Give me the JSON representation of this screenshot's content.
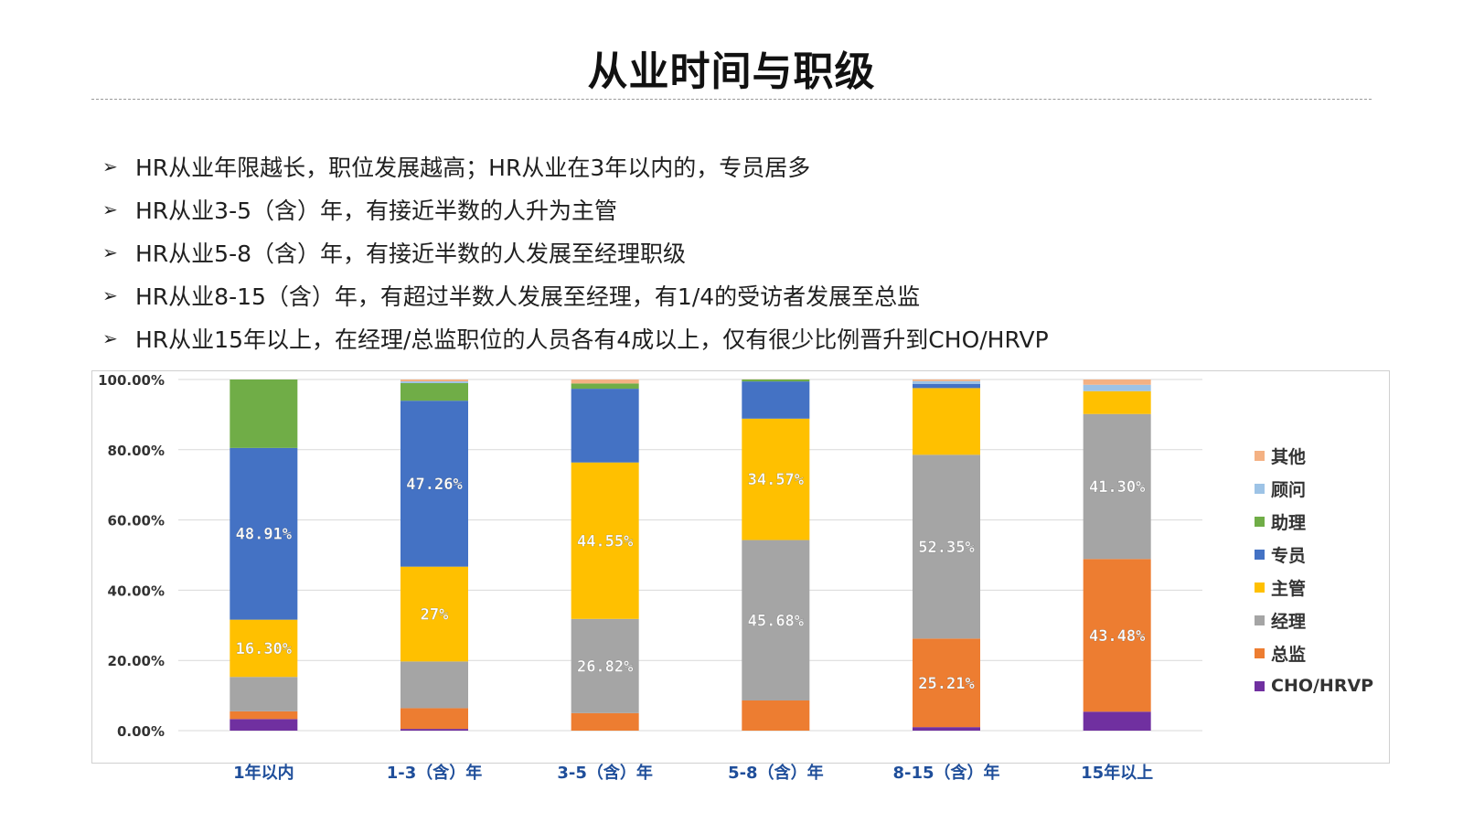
{
  "page": {
    "title": "从业时间与职级",
    "bullet_marker": "➢",
    "bullets": [
      "HR从业年限越长，职位发展越高；HR从业在3年以内的，专员居多",
      "HR从业3-5（含）年，有接近半数的人升为主管",
      "HR从业5-8（含）年，有接近半数的人发展至经理职级",
      "HR从业8-15（含）年，有超过半数人发展至经理，有1/4的受访者发展至总监",
      "HR从业15年以上，在经理/总监职位的人员各有4成以上，仅有很少比例晋升到CHO/HRVP"
    ]
  },
  "chart_data": {
    "type": "bar",
    "stacked": true,
    "categories": [
      "1年以内",
      "1-3（含）年",
      "3-5（含）年",
      "5-8（含）年",
      "8-15（含）年",
      "15年以上"
    ],
    "y_ticks": [
      "100.00%",
      "80.00%",
      "60.00%",
      "40.00%",
      "20.00%",
      "0.00%"
    ],
    "ylim": [
      0,
      100
    ],
    "grid": true,
    "legend_position": "right",
    "series": [
      {
        "name": "CHO/HRVP",
        "color": "#7030A0",
        "values": [
          3.3,
          0.5,
          0,
          0,
          1.0,
          5.4
        ],
        "labels": [
          "",
          "",
          "",
          "",
          "",
          ""
        ]
      },
      {
        "name": "总监",
        "color": "#ED7D31",
        "values": [
          2.2,
          5.9,
          5.0,
          8.6,
          25.21,
          43.48
        ],
        "labels": [
          "",
          "",
          "",
          "",
          "25.21%",
          "43.48%"
        ]
      },
      {
        "name": "经理",
        "color": "#A5A5A5",
        "values": [
          9.8,
          13.3,
          26.82,
          45.68,
          52.35,
          41.3
        ],
        "labels": [
          "",
          "",
          "26.82%",
          "45.68%",
          "52.35%",
          "41.30%"
        ]
      },
      {
        "name": "主管",
        "color": "#FFC000",
        "values": [
          16.3,
          27,
          44.55,
          34.57,
          19.0,
          6.5
        ],
        "labels": [
          "16.30%",
          "27%",
          "44.55%",
          "34.57%",
          "",
          ""
        ]
      },
      {
        "name": "专员",
        "color": "#4472C4",
        "values": [
          48.91,
          47.26,
          21.0,
          10.6,
          1.2,
          0
        ],
        "labels": [
          "48.91%",
          "47.26%",
          "",
          "",
          "",
          ""
        ]
      },
      {
        "name": "助理",
        "color": "#70AD47",
        "values": [
          19.49,
          5.0,
          1.5,
          0.56,
          0,
          0
        ],
        "labels": [
          "",
          "",
          "",
          "",
          "",
          ""
        ]
      },
      {
        "name": "顾问",
        "color": "#9DC3E6",
        "values": [
          0,
          0.5,
          0,
          0,
          0.79,
          1.82
        ],
        "labels": [
          "",
          "",
          "",
          "",
          "",
          ""
        ]
      },
      {
        "name": "其他",
        "color": "#F4B183",
        "values": [
          0,
          0.54,
          1.13,
          0.03,
          0.45,
          1.5
        ],
        "labels": [
          "",
          "",
          "",
          "",
          "",
          ""
        ]
      }
    ],
    "legend_order": [
      "其他",
      "顾问",
      "助理",
      "专员",
      "主管",
      "经理",
      "总监",
      "CHO/HRVP"
    ],
    "colors": {
      "grid": "#D9D9D9",
      "axis_text": "#333333",
      "category_text": "#1F4E9A",
      "data_label": "#FFFFFF"
    }
  }
}
